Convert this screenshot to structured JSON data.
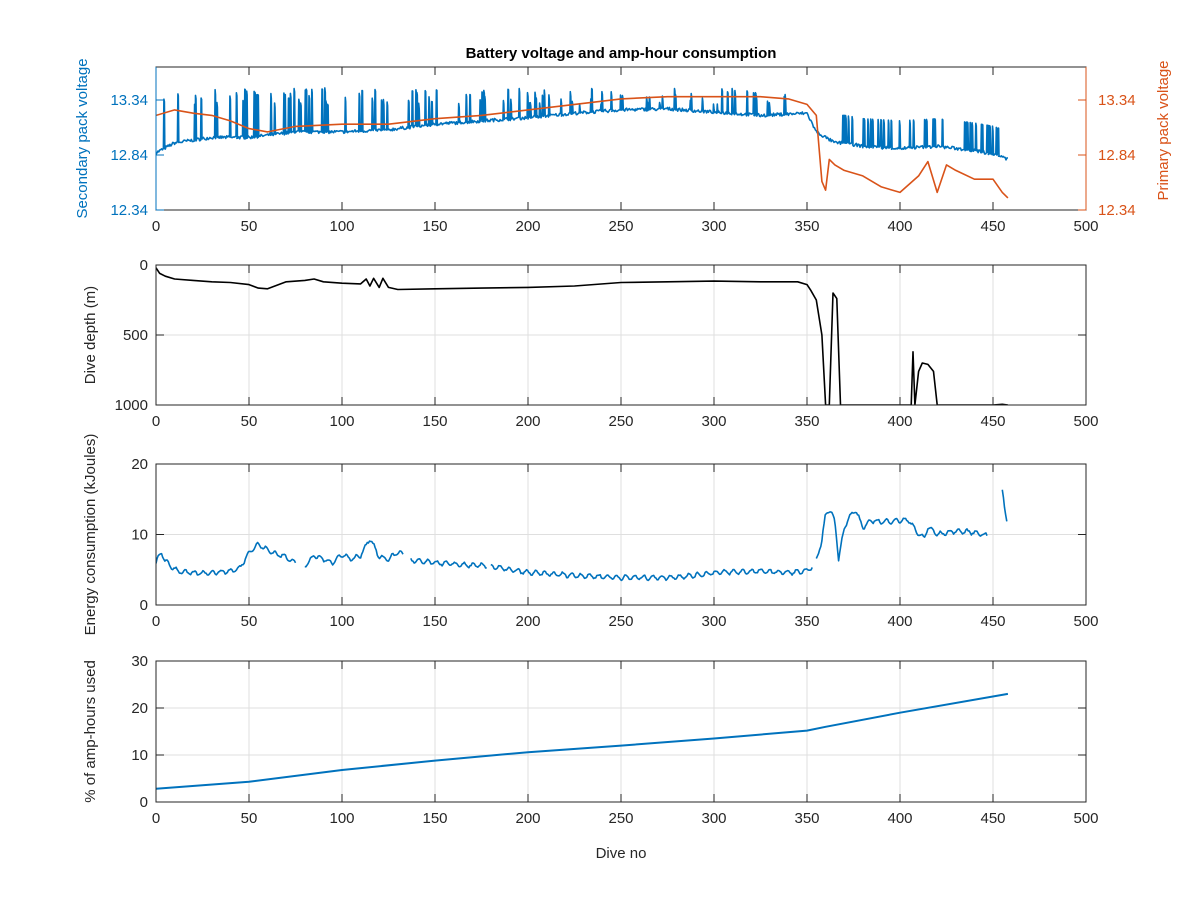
{
  "colors": {
    "blue": "#0072BD",
    "orange": "#D95319",
    "black": "#000000",
    "axis": "#262626",
    "grid": "#dfdfdf"
  },
  "chart_data": [
    {
      "type": "line",
      "title": "Battery voltage and amp-hour consumption",
      "xlabel": "",
      "ylabel": "Secondary pack voltage",
      "ylabel_right": "Primary pack voltage",
      "xlim": [
        0,
        500
      ],
      "ylim": [
        12.34,
        13.64
      ],
      "ylim_right": [
        12.34,
        13.64
      ],
      "xticks": [
        "0",
        "50",
        "100",
        "150",
        "200",
        "250",
        "300",
        "350",
        "400",
        "450",
        "500"
      ],
      "yticks": [
        "12.34",
        "12.84",
        "13.34"
      ],
      "yticks_right": [
        "12.34",
        "12.84",
        "13.34"
      ],
      "grid": false,
      "series": [
        {
          "axis": "left",
          "color": "#0072BD",
          "spiky": true,
          "spike_top": 13.45,
          "x": [
            0,
            10,
            30,
            50,
            75,
            100,
            125,
            150,
            175,
            200,
            225,
            250,
            275,
            300,
            325,
            350,
            355,
            360,
            365,
            370,
            380,
            400,
            420,
            440,
            450,
            455,
            458
          ],
          "values": [
            12.86,
            12.95,
            13.0,
            13.0,
            13.05,
            13.05,
            13.07,
            13.12,
            13.15,
            13.18,
            13.22,
            13.25,
            13.26,
            13.23,
            13.2,
            13.22,
            13.05,
            13.0,
            12.95,
            12.95,
            12.92,
            12.9,
            12.92,
            12.88,
            12.85,
            12.82,
            12.8
          ]
        },
        {
          "axis": "right",
          "color": "#D95319",
          "x": [
            0,
            10,
            20,
            30,
            40,
            50,
            60,
            75,
            100,
            125,
            150,
            175,
            200,
            225,
            250,
            275,
            300,
            325,
            340,
            350,
            355,
            358,
            360,
            362,
            365,
            370,
            380,
            390,
            400,
            410,
            415,
            420,
            425,
            430,
            440,
            450,
            455,
            458
          ],
          "values": [
            13.2,
            13.25,
            13.22,
            13.2,
            13.15,
            13.08,
            13.05,
            13.1,
            13.12,
            13.12,
            13.17,
            13.2,
            13.25,
            13.3,
            13.35,
            13.37,
            13.37,
            13.37,
            13.35,
            13.3,
            13.2,
            12.6,
            12.52,
            12.8,
            12.75,
            12.7,
            12.65,
            12.55,
            12.5,
            12.65,
            12.78,
            12.5,
            12.75,
            12.7,
            12.62,
            12.62,
            12.5,
            12.45
          ]
        }
      ]
    },
    {
      "type": "line",
      "title": "",
      "xlabel": "",
      "ylabel": "Dive depth (m)",
      "xlim": [
        0,
        500
      ],
      "ylim": [
        0,
        1000
      ],
      "y_reversed": true,
      "xticks": [
        "0",
        "50",
        "100",
        "150",
        "200",
        "250",
        "300",
        "350",
        "400",
        "450",
        "500"
      ],
      "yticks": [
        "0",
        "500",
        "1000"
      ],
      "grid": true,
      "series": [
        {
          "color": "#000000",
          "x": [
            0,
            2,
            5,
            10,
            20,
            30,
            40,
            50,
            55,
            60,
            70,
            80,
            85,
            90,
            100,
            110,
            113,
            115,
            117,
            120,
            122,
            125,
            130,
            150,
            175,
            200,
            225,
            250,
            275,
            300,
            325,
            345,
            350,
            352,
            355,
            358,
            360,
            362,
            364,
            366,
            368,
            370,
            380,
            400,
            405,
            406,
            407,
            408,
            410,
            412,
            415,
            418,
            420,
            430,
            440,
            450,
            455,
            458
          ],
          "values": [
            20,
            60,
            80,
            100,
            110,
            120,
            125,
            140,
            165,
            170,
            120,
            110,
            100,
            120,
            130,
            135,
            100,
            150,
            95,
            160,
            95,
            160,
            175,
            170,
            165,
            160,
            150,
            125,
            120,
            115,
            120,
            120,
            140,
            180,
            250,
            500,
            1000,
            1000,
            200,
            240,
            1000,
            1000,
            1000,
            1000,
            1000,
            1000,
            620,
            1000,
            760,
            700,
            710,
            760,
            1000,
            1000,
            1000,
            1000,
            995,
            1000
          ]
        }
      ]
    },
    {
      "type": "line",
      "title": "",
      "xlabel": "",
      "ylabel": "Energy consumption (kJoules)",
      "xlim": [
        0,
        500
      ],
      "ylim": [
        0,
        20
      ],
      "xticks": [
        "0",
        "50",
        "100",
        "150",
        "200",
        "250",
        "300",
        "350",
        "400",
        "450",
        "500"
      ],
      "yticks": [
        "0",
        "10",
        "20"
      ],
      "grid": true,
      "series": [
        {
          "color": "#0072BD",
          "wiggle": 0.6,
          "segments": [
            {
              "x": [
                0,
                3,
                5,
                8,
                12,
                20,
                30,
                40,
                45,
                50,
                55,
                60,
                65,
                70,
                75
              ],
              "values": [
                6.0,
                7.5,
                6.2,
                5.5,
                4.8,
                4.5,
                4.6,
                4.8,
                5.2,
                7.5,
                8.6,
                7.8,
                7.2,
                6.8,
                6.0
              ]
            },
            {
              "x": [
                80,
                85,
                90,
                95,
                100,
                105,
                110,
                115,
                120,
                125,
                130,
                133
              ],
              "values": [
                5.5,
                7.0,
                6.5,
                6.0,
                7.2,
                6.5,
                7.0,
                9.5,
                6.8,
                6.5,
                7.5,
                7.2
              ]
            },
            {
              "x": [
                137,
                150,
                160,
                170,
                178
              ],
              "values": [
                6.3,
                6.0,
                5.8,
                5.6,
                5.6
              ]
            },
            {
              "x": [
                180,
                190,
                200,
                225,
                250,
                275,
                290,
                300,
                325,
                340,
                350,
                353
              ],
              "values": [
                5.5,
                5.0,
                4.6,
                4.2,
                3.9,
                3.9,
                4.2,
                4.6,
                4.8,
                4.6,
                4.8,
                5.5
              ]
            },
            {
              "x": [
                355,
                358,
                360,
                362,
                365,
                367,
                370,
                373,
                376,
                380,
                385,
                390,
                400,
                405,
                410,
                413,
                415,
                418,
                420,
                430,
                440,
                445,
                447
              ],
              "values": [
                6.5,
                9.0,
                13.0,
                13.5,
                12.0,
                6.5,
                11.0,
                12.5,
                13.5,
                11.0,
                12.0,
                11.8,
                12.0,
                12.0,
                10.0,
                9.5,
                11.0,
                10.5,
                10.0,
                10.5,
                10.3,
                10.0,
                9.8
              ]
            },
            {
              "x": [
                455,
                456,
                457,
                458
              ],
              "values": [
                16.2,
                14.0,
                12.5,
                11.5
              ]
            }
          ]
        }
      ]
    },
    {
      "type": "line",
      "title": "",
      "xlabel": "Dive no",
      "ylabel": "% of amp-hours used",
      "xlim": [
        0,
        500
      ],
      "ylim": [
        0,
        30
      ],
      "xticks": [
        "0",
        "50",
        "100",
        "150",
        "200",
        "250",
        "300",
        "350",
        "400",
        "450",
        "500"
      ],
      "yticks": [
        "0",
        "10",
        "20",
        "30"
      ],
      "grid": true,
      "series": [
        {
          "color": "#0072BD",
          "x": [
            0,
            50,
            100,
            150,
            200,
            250,
            300,
            350,
            360,
            400,
            458
          ],
          "values": [
            2.8,
            4.3,
            6.8,
            8.8,
            10.6,
            12.0,
            13.5,
            15.2,
            16.0,
            19.0,
            23.0
          ]
        }
      ]
    }
  ]
}
